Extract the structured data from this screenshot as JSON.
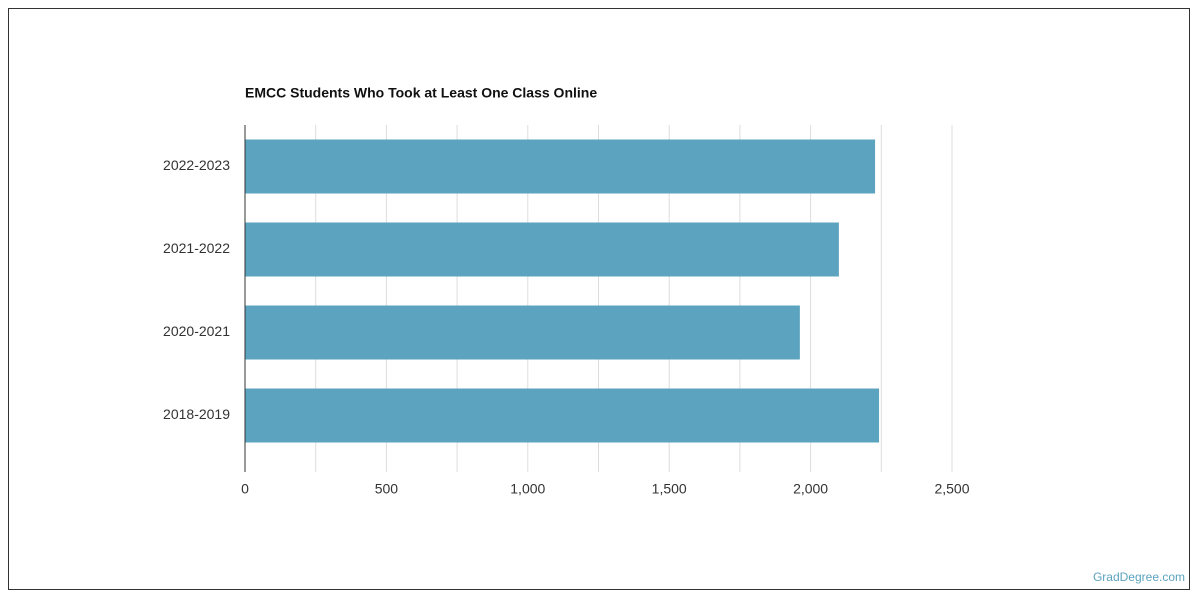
{
  "chart_data": {
    "type": "hbar",
    "title": "EMCC Students Who Took at Least One Class Online",
    "categories": [
      "2022-2023",
      "2021-2022",
      "2020-2021",
      "2018-2019"
    ],
    "values": [
      2228,
      2100,
      1962,
      2242
    ],
    "color": "#5ba3be",
    "xlim": [
      0,
      2500
    ],
    "xticks": [
      0,
      500,
      {
        "value": 1000,
        "label": "1,000"
      },
      {
        "value": 1500,
        "label": "1,500"
      },
      {
        "value": 2000,
        "label": "2,000"
      },
      {
        "value": 2500,
        "label": "2,500"
      }
    ],
    "x_minor_ticks": [
      250,
      750,
      1250,
      1750,
      2250
    ],
    "grid": true
  },
  "footer": {
    "source": "GradDegree.com"
  }
}
